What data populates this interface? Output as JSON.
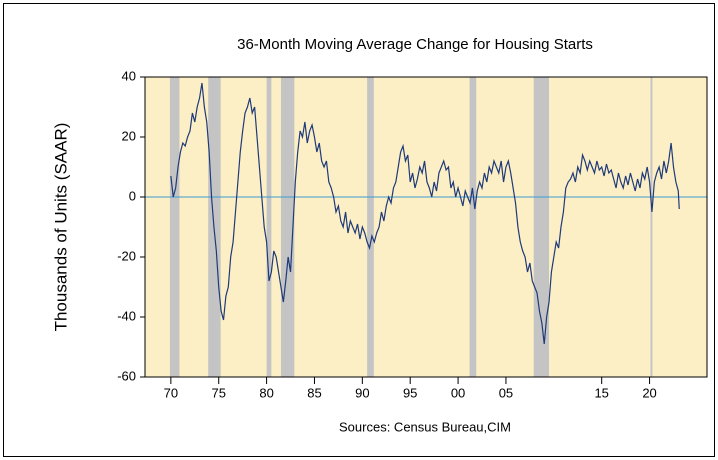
{
  "chart_data": {
    "type": "line",
    "title": "36-Month Moving Average Change for Housing Starts",
    "y_label": "Thousands of Units (SAAR)",
    "source": "Sources: Census Bureau,CIM",
    "xlim": [
      1967.3,
      2026
    ],
    "ylim": [
      -60,
      40
    ],
    "yticks": [
      40,
      20,
      0,
      -20,
      -40,
      -60
    ],
    "xticks": [
      {
        "value": 1970,
        "label": "70"
      },
      {
        "value": 1975,
        "label": "75"
      },
      {
        "value": 1980,
        "label": "80"
      },
      {
        "value": 1985,
        "label": "85"
      },
      {
        "value": 1990,
        "label": "90"
      },
      {
        "value": 1995,
        "label": "95"
      },
      {
        "value": 2000,
        "label": "00"
      },
      {
        "value": 2005,
        "label": "05"
      },
      {
        "value": 2015,
        "label": "15"
      },
      {
        "value": 2020,
        "label": "20"
      }
    ],
    "reference_line": 0,
    "reference_color": "#3d9bd1",
    "background": "#fcefc5",
    "band_color": "#c4c4c4",
    "shaded_regions": [
      [
        1969.9,
        1970.9
      ],
      [
        1973.9,
        1975.2
      ],
      [
        1980.0,
        1980.5
      ],
      [
        1981.5,
        1982.9
      ],
      [
        1990.5,
        1991.2
      ],
      [
        2001.2,
        2001.9
      ],
      [
        2007.9,
        2009.5
      ],
      [
        2020.1,
        2020.3
      ]
    ],
    "x": [
      1970.0,
      1970.25,
      1970.5,
      1970.75,
      1971.0,
      1971.25,
      1971.5,
      1971.75,
      1972.0,
      1972.25,
      1972.5,
      1972.75,
      1973.0,
      1973.25,
      1973.5,
      1973.75,
      1974.0,
      1974.25,
      1974.5,
      1974.75,
      1975.0,
      1975.25,
      1975.5,
      1975.75,
      1976.0,
      1976.25,
      1976.5,
      1976.75,
      1977.0,
      1977.25,
      1977.5,
      1977.75,
      1978.0,
      1978.25,
      1978.5,
      1978.75,
      1979.0,
      1979.25,
      1979.5,
      1979.75,
      1980.0,
      1980.25,
      1980.5,
      1980.75,
      1981.0,
      1981.25,
      1981.5,
      1981.75,
      1982.0,
      1982.25,
      1982.5,
      1982.75,
      1983.0,
      1983.25,
      1983.5,
      1983.75,
      1984.0,
      1984.25,
      1984.5,
      1984.75,
      1985.0,
      1985.25,
      1985.5,
      1985.75,
      1986.0,
      1986.25,
      1986.5,
      1986.75,
      1987.0,
      1987.25,
      1987.5,
      1987.75,
      1988.0,
      1988.25,
      1988.5,
      1988.75,
      1989.0,
      1989.25,
      1989.5,
      1989.75,
      1990.0,
      1990.25,
      1990.5,
      1990.75,
      1991.0,
      1991.25,
      1991.5,
      1991.75,
      1992.0,
      1992.25,
      1992.5,
      1992.75,
      1993.0,
      1993.25,
      1993.5,
      1993.75,
      1994.0,
      1994.25,
      1994.5,
      1994.75,
      1995.0,
      1995.25,
      1995.5,
      1995.75,
      1996.0,
      1996.25,
      1996.5,
      1996.75,
      1997.0,
      1997.25,
      1997.5,
      1997.75,
      1998.0,
      1998.25,
      1998.5,
      1998.75,
      1999.0,
      1999.25,
      1999.5,
      1999.75,
      2000.0,
      2000.25,
      2000.5,
      2000.75,
      2001.0,
      2001.25,
      2001.5,
      2001.75,
      2002.0,
      2002.25,
      2002.5,
      2002.75,
      2003.0,
      2003.25,
      2003.5,
      2003.75,
      2004.0,
      2004.25,
      2004.5,
      2004.75,
      2005.0,
      2005.25,
      2005.5,
      2005.75,
      2006.0,
      2006.25,
      2006.5,
      2006.75,
      2007.0,
      2007.25,
      2007.5,
      2007.75,
      2008.0,
      2008.25,
      2008.5,
      2008.75,
      2009.0,
      2009.25,
      2009.5,
      2009.75,
      2010.0,
      2010.25,
      2010.5,
      2010.75,
      2011.0,
      2011.25,
      2011.5,
      2011.75,
      2012.0,
      2012.25,
      2012.5,
      2012.75,
      2013.0,
      2013.25,
      2013.5,
      2013.75,
      2014.0,
      2014.25,
      2014.5,
      2014.75,
      2015.0,
      2015.25,
      2015.5,
      2015.75,
      2016.0,
      2016.25,
      2016.5,
      2016.75,
      2017.0,
      2017.25,
      2017.5,
      2017.75,
      2018.0,
      2018.25,
      2018.5,
      2018.75,
      2019.0,
      2019.25,
      2019.5,
      2019.75,
      2020.0,
      2020.25,
      2020.5,
      2020.75,
      2021.0,
      2021.25,
      2021.5,
      2021.75,
      2022.0,
      2022.25,
      2022.5,
      2022.75,
      2023.0,
      2023.1
    ],
    "series": [
      {
        "name": "36-Month Moving Average Change",
        "color": "#1f3a7a",
        "values": [
          7,
          0,
          3,
          10,
          15,
          18,
          17,
          20,
          22,
          28,
          25,
          30,
          33,
          38,
          30,
          25,
          15,
          0,
          -10,
          -18,
          -30,
          -38,
          -41,
          -33,
          -30,
          -20,
          -15,
          -5,
          5,
          15,
          22,
          28,
          30,
          33,
          28,
          30,
          20,
          10,
          0,
          -10,
          -15,
          -28,
          -25,
          -18,
          -20,
          -25,
          -30,
          -35,
          -28,
          -20,
          -25,
          -10,
          5,
          15,
          22,
          20,
          25,
          18,
          22,
          24,
          20,
          15,
          18,
          12,
          10,
          12,
          5,
          3,
          0,
          -5,
          -3,
          -8,
          -10,
          -5,
          -12,
          -8,
          -10,
          -12,
          -9,
          -14,
          -10,
          -12,
          -15,
          -17,
          -13,
          -15,
          -12,
          -10,
          -5,
          -8,
          -3,
          0,
          -2,
          3,
          5,
          10,
          15,
          17,
          12,
          14,
          5,
          8,
          3,
          6,
          10,
          8,
          12,
          5,
          3,
          0,
          5,
          2,
          8,
          10,
          12,
          9,
          10,
          3,
          5,
          0,
          3,
          0,
          -3,
          2,
          0,
          -2,
          3,
          -4,
          2,
          5,
          3,
          8,
          5,
          10,
          8,
          12,
          10,
          8,
          12,
          5,
          10,
          12,
          8,
          3,
          -2,
          -10,
          -15,
          -18,
          -20,
          -25,
          -22,
          -28,
          -30,
          -32,
          -38,
          -42,
          -49,
          -40,
          -35,
          -25,
          -20,
          -15,
          -17,
          -10,
          -5,
          3,
          5,
          6,
          8,
          5,
          10,
          8,
          14,
          12,
          9,
          12,
          10,
          8,
          12,
          9,
          10,
          7,
          11,
          8,
          9,
          6,
          3,
          8,
          5,
          3,
          7,
          4,
          8,
          5,
          2,
          6,
          3,
          8,
          6,
          10,
          5,
          -5,
          5,
          8,
          10,
          6,
          12,
          8,
          12,
          18,
          10,
          5,
          2,
          -4
        ]
      }
    ]
  }
}
